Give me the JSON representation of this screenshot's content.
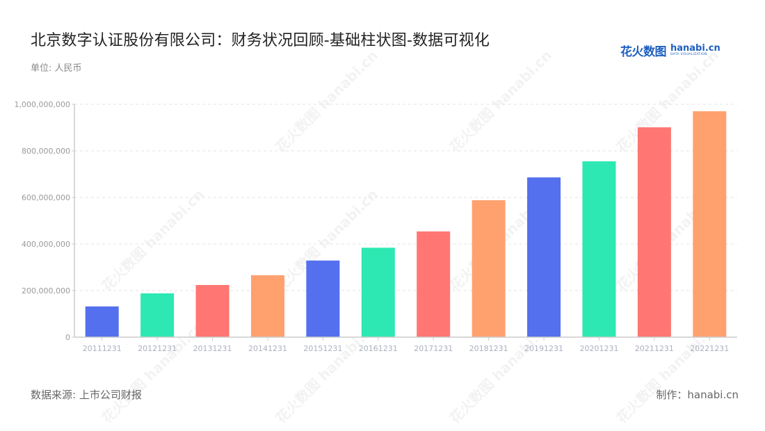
{
  "header": {
    "title": "北京数字认证股份有限公司：财务状况回顾-基础柱状图-数据可视化",
    "unit": "单位: 人民币"
  },
  "logo": {
    "cn": "花火数图",
    "en": "hanabi.cn",
    "sub": "DATA VISUALIZATION"
  },
  "footer": {
    "source": "数据来源: 上市公司财报",
    "maker": "制作：hanabi.cn"
  },
  "watermark": "花火数图 hanabi.cn",
  "colors": [
    "#5470ee",
    "#2de8b2",
    "#ff7672",
    "#ffa16e"
  ],
  "chart_data": {
    "type": "bar",
    "title": "北京数字认证股份有限公司：财务状况回顾-基础柱状图-数据可视化",
    "subtitle": "单位: 人民币",
    "xlabel": "",
    "ylabel": "",
    "categories": [
      "20111231",
      "20121231",
      "20131231",
      "20141231",
      "20151231",
      "20161231",
      "20171231",
      "20181231",
      "20191231",
      "20201231",
      "20211231",
      "20221231"
    ],
    "values": [
      132000000,
      188000000,
      224000000,
      266000000,
      329000000,
      384000000,
      454000000,
      588000000,
      686000000,
      755000000,
      901000000,
      970000000
    ],
    "ylim": [
      0,
      1000000000
    ],
    "yticks": [
      0,
      200000000,
      400000000,
      600000000,
      800000000,
      1000000000
    ],
    "ytick_labels": [
      "0",
      "200,000,000",
      "400,000,000",
      "600,000,000",
      "800,000,000",
      "1,000,000,000"
    ],
    "grid": true,
    "legend": "none",
    "bar_colors_cycle": [
      "#5470ee",
      "#2de8b2",
      "#ff7672",
      "#ffa16e"
    ]
  }
}
